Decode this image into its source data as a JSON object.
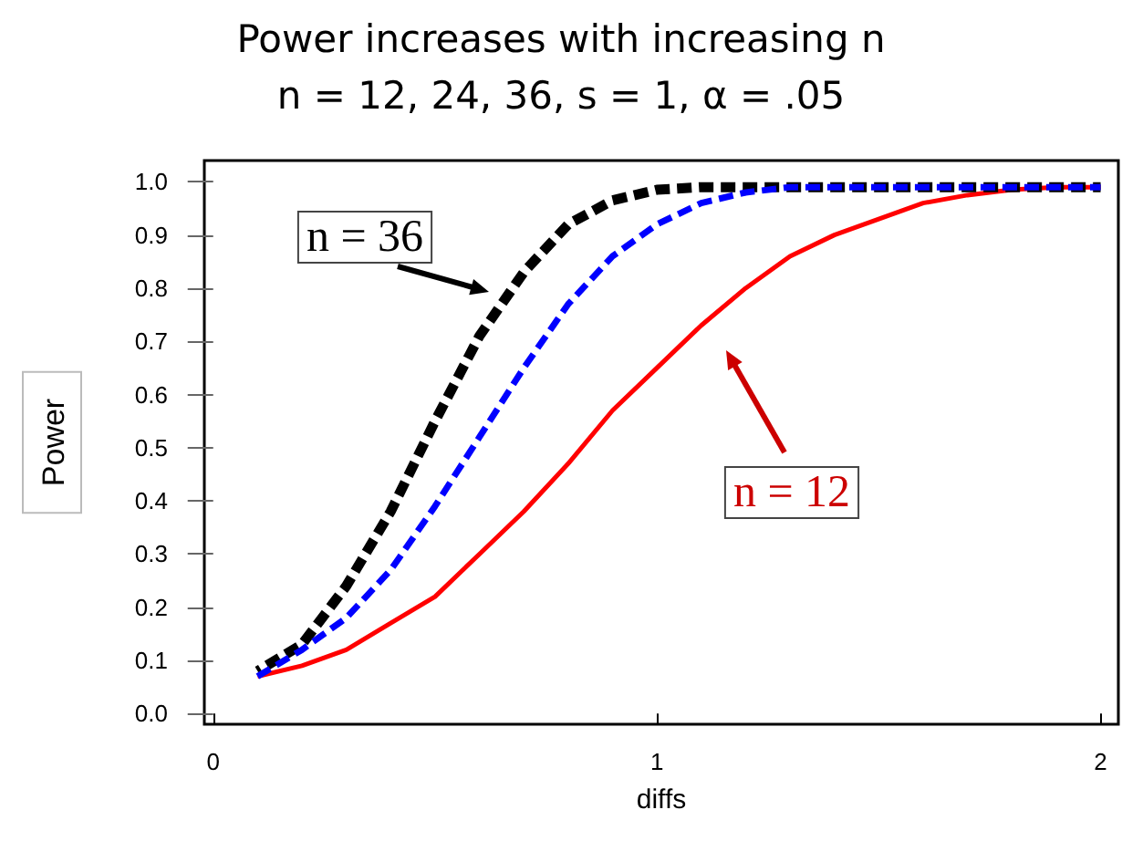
{
  "chart_data": {
    "type": "line",
    "title": "Power increases with increasing n",
    "subtitle": "n = 12, 24, 36, s = 1, α = .05",
    "xlabel": "diffs",
    "ylabel": "Power",
    "x": [
      0.1,
      0.2,
      0.3,
      0.4,
      0.5,
      0.6,
      0.7,
      0.8,
      0.9,
      1.0,
      1.1,
      1.2,
      1.3,
      1.4,
      1.5,
      1.6,
      1.7,
      1.8,
      1.9,
      2.0
    ],
    "series": [
      {
        "color": "#ff0000",
        "line_style": "solid",
        "values": [
          0.07,
          0.09,
          0.12,
          0.17,
          0.22,
          0.3,
          0.38,
          0.47,
          0.57,
          0.65,
          0.73,
          0.8,
          0.86,
          0.9,
          0.93,
          0.96,
          0.975,
          0.985,
          0.99,
          0.99
        ]
      },
      {
        "color": "#0000ff",
        "line_style": "dashed",
        "values": [
          0.07,
          0.12,
          0.18,
          0.27,
          0.39,
          0.52,
          0.65,
          0.77,
          0.86,
          0.92,
          0.96,
          0.98,
          0.99,
          0.99,
          0.99,
          0.99,
          0.99,
          0.99,
          0.99,
          0.99
        ]
      },
      {
        "color": "#000000",
        "line_style": "dashed",
        "values": [
          0.08,
          0.13,
          0.24,
          0.38,
          0.55,
          0.71,
          0.83,
          0.92,
          0.965,
          0.985,
          0.99,
          0.99,
          0.99,
          0.99,
          0.99,
          0.99,
          0.99,
          0.99,
          0.99,
          0.99
        ]
      }
    ],
    "xlim": [
      -0.02,
      2.04
    ],
    "xticks": [
      0,
      1,
      2
    ],
    "ylim": [
      -0.02,
      1.04
    ],
    "yticks": [
      {
        "value": 0,
        "label": "0.0"
      },
      {
        "value": 0.1,
        "label": "0.1"
      },
      {
        "value": 0.2,
        "label": "0.2"
      },
      {
        "value": 0.3,
        "label": "0.3"
      },
      {
        "value": 0.4,
        "label": "0.4"
      },
      {
        "value": 0.5,
        "label": "0.5"
      },
      {
        "value": 0.6,
        "label": "0.6"
      },
      {
        "value": 0.7,
        "label": "0.7"
      },
      {
        "value": 0.8,
        "label": "0.8"
      },
      {
        "value": 0.9,
        "label": "0.9"
      },
      {
        "value": 1.0,
        "label": "1.0"
      }
    ],
    "annotations": [
      "n = 36",
      "n = 12"
    ],
    "grid": false,
    "marker": "none"
  }
}
